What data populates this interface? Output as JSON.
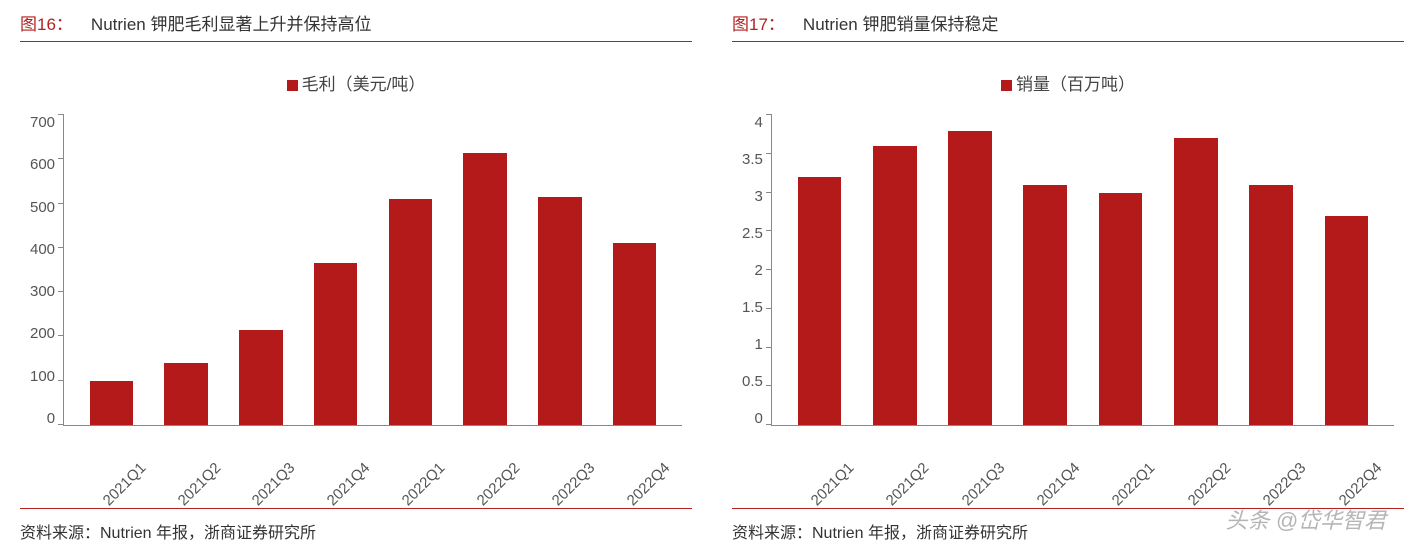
{
  "watermark": "头条 @岱华智君",
  "left": {
    "fig_no": "图16：",
    "fig_title": "Nutrien 钾肥毛利显著上升并保持高位",
    "legend_label": "毛利（美元/吨）",
    "source": "资料来源：Nutrien 年报，浙商证券研究所",
    "chart": {
      "type": "bar",
      "categories": [
        "2021Q1",
        "2021Q2",
        "2021Q3",
        "2021Q4",
        "2022Q1",
        "2022Q2",
        "2022Q3",
        "2022Q4"
      ],
      "values": [
        100,
        140,
        215,
        365,
        510,
        615,
        515,
        410
      ],
      "bar_color": "#b41a1a",
      "ylim": [
        0,
        700
      ],
      "ytick_step": 100,
      "axis_color": "#888888",
      "label_color": "#555555",
      "label_fontsize": 15,
      "legend_fontsize": 17,
      "background_color": "#ffffff",
      "bar_width": 0.58
    }
  },
  "right": {
    "fig_no": "图17：",
    "fig_title": "Nutrien 钾肥销量保持稳定",
    "legend_label": "销量（百万吨）",
    "source": "资料来源：Nutrien 年报，浙商证券研究所",
    "chart": {
      "type": "bar",
      "categories": [
        "2021Q1",
        "2021Q2",
        "2021Q3",
        "2021Q4",
        "2022Q1",
        "2022Q2",
        "2022Q3",
        "2022Q4"
      ],
      "values": [
        3.2,
        3.6,
        3.8,
        3.1,
        3.0,
        3.7,
        3.1,
        2.7
      ],
      "bar_color": "#b41a1a",
      "ylim": [
        0,
        4
      ],
      "ytick_step": 0.5,
      "axis_color": "#888888",
      "label_color": "#555555",
      "label_fontsize": 15,
      "legend_fontsize": 17,
      "background_color": "#ffffff",
      "bar_width": 0.58
    }
  }
}
